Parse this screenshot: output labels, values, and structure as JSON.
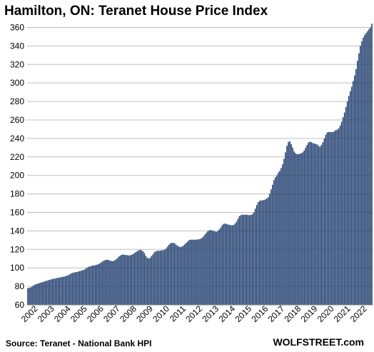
{
  "title": "Hamilton, ON: Teranet House Price Index",
  "source": "Source: Teranet - National Bank HPI",
  "brand": "WOLFSTREET.com",
  "colors": {
    "bar_fill": "#1F3D6E",
    "grid": "#BFBFBF",
    "axis": "#7F7F7F"
  },
  "chart_data": {
    "type": "bar",
    "title": "Hamilton, ON: Teranet House Price Index",
    "xlabel": "",
    "ylabel": "",
    "ylim": [
      60,
      365
    ],
    "yticks": [
      60,
      80,
      100,
      120,
      140,
      160,
      180,
      200,
      220,
      240,
      260,
      280,
      300,
      320,
      340,
      360
    ],
    "grid": true,
    "legend": "none",
    "x_tick_labels": [
      "2002",
      "2003",
      "2004",
      "2005",
      "2006",
      "2007",
      "2008",
      "2009",
      "2010",
      "2011",
      "2012",
      "2013",
      "2014",
      "2015",
      "2016",
      "2017",
      "2018",
      "2019",
      "2020",
      "2021",
      "2022"
    ],
    "frequency": "monthly",
    "series": [
      {
        "values": [
          78,
          78.5,
          79,
          80,
          81,
          82,
          82.5,
          83,
          83.5,
          84,
          84.5,
          85,
          85.5,
          86,
          86.5,
          87,
          87.5,
          88,
          88.2,
          88.5,
          89,
          89.3,
          89.6,
          90,
          90.2,
          90.5,
          91,
          91.5,
          92,
          93,
          94,
          94.5,
          95,
          95.3,
          95.5,
          96,
          96.5,
          97,
          97.5,
          98,
          99,
          100,
          101,
          101.5,
          102,
          102.5,
          102.8,
          103,
          103.5,
          104,
          105,
          106,
          107,
          108,
          108.5,
          108.8,
          108.5,
          108,
          107.5,
          107.2,
          108,
          109,
          110,
          112,
          113,
          114,
          114.5,
          114.2,
          114,
          113.8,
          113.5,
          113.6,
          114,
          115,
          116,
          117,
          118,
          119,
          119.5,
          119,
          118,
          116,
          113,
          111,
          110,
          111,
          113,
          115,
          117,
          118,
          118.5,
          118.5,
          118.7,
          119,
          119.2,
          119.5,
          121,
          123,
          125,
          126.5,
          127,
          127.2,
          126.5,
          125,
          124,
          123,
          122.5,
          123,
          124,
          125.5,
          127,
          128.5,
          130,
          130.5,
          130.5,
          130.5,
          130.5,
          130.6,
          130.8,
          131,
          131.5,
          132.5,
          134,
          136,
          138,
          139.5,
          140.5,
          141,
          140.5,
          140,
          139.5,
          139,
          140,
          141.5,
          143.5,
          146,
          147.5,
          148,
          147.5,
          147,
          146.5,
          146.2,
          146,
          146.5,
          148,
          150,
          153,
          156,
          157,
          157.5,
          157.5,
          157.5,
          157.5,
          157.2,
          157,
          157.3,
          158,
          160,
          164,
          168,
          171,
          172.5,
          173,
          173,
          173.5,
          174,
          175,
          176.5,
          180,
          185,
          190,
          195,
          198,
          200,
          203,
          205,
          208,
          212,
          218,
          225,
          232,
          236,
          237,
          234,
          230,
          226,
          224,
          223,
          223,
          223.5,
          224,
          225,
          227,
          230,
          233,
          235.5,
          236.5,
          236,
          235,
          234.5,
          234,
          233.5,
          232,
          231,
          233,
          236,
          240,
          244,
          246.5,
          247,
          247,
          246.8,
          247,
          248,
          249,
          249.5,
          251,
          254,
          258,
          263,
          268,
          274,
          280,
          286,
          291,
          296,
          302,
          308,
          315,
          324,
          332,
          340,
          345,
          349,
          352,
          354,
          356,
          358,
          360,
          364
        ]
      }
    ]
  }
}
